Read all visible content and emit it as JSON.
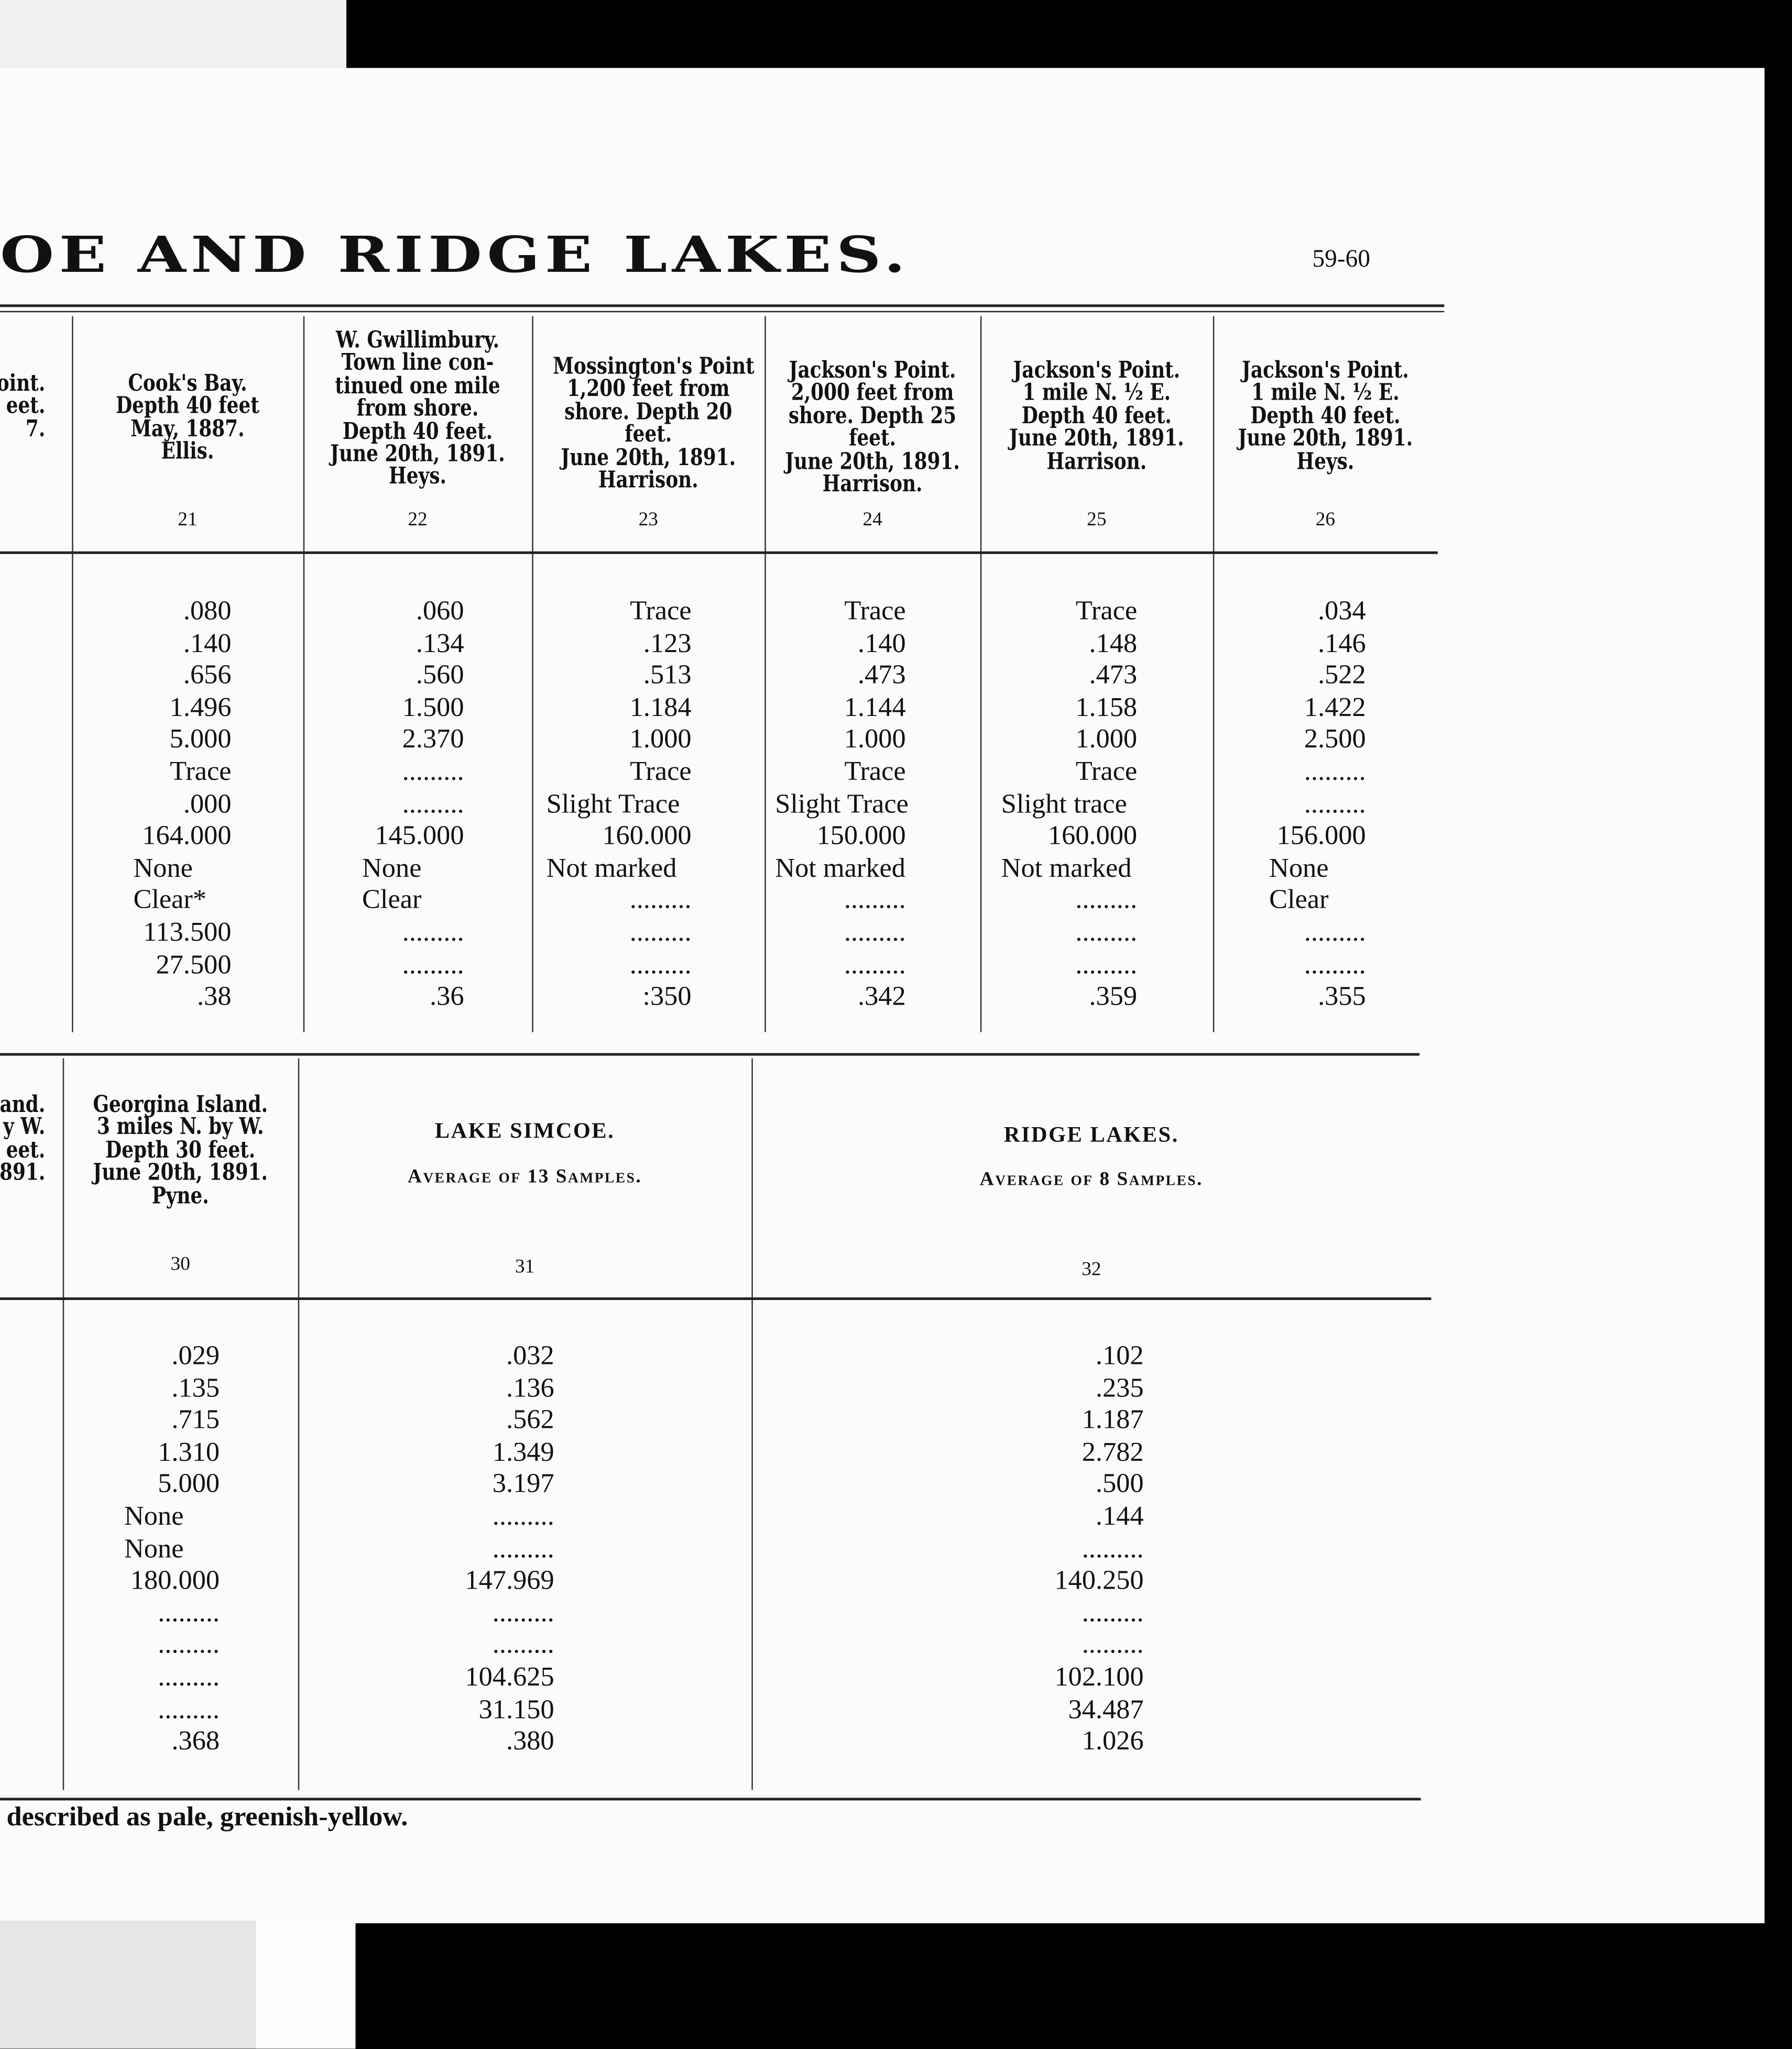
{
  "page": {
    "title": "OE AND RIDGE LAKES.",
    "page_number": "59-60",
    "footnote": "described as pale, greenish-yellow."
  },
  "top_table": {
    "partial_header": [
      "oint.",
      "eet.",
      "7."
    ],
    "columns": [
      {
        "number": "21",
        "header": [
          "Cook's Bay.",
          "Depth 40 feet",
          "May, 1887.",
          "Ellis."
        ],
        "values": [
          ".080",
          ".140",
          ".656",
          "1.496",
          "5.000",
          "Trace",
          ".000",
          "164.000",
          "None",
          "Clear*",
          "113.500",
          "27.500",
          ".38"
        ]
      },
      {
        "number": "22",
        "header": [
          "W. Gwillimbury.",
          "Town line con-",
          "tinued one mile",
          "from shore.",
          "Depth 40 feet.",
          "June 20th, 1891.",
          "Heys."
        ],
        "values": [
          ".060",
          ".134",
          ".560",
          "1.500",
          "2.370",
          ".........",
          ".........",
          "145.000",
          "None",
          "Clear",
          ".........",
          ".........",
          ".36"
        ]
      },
      {
        "number": "23",
        "header": [
          "Mossington's Point",
          "1,200 feet from",
          "shore. Depth 20",
          "feet.",
          "June 20th, 1891.",
          "Harrison."
        ],
        "values": [
          "Trace",
          ".123",
          ".513",
          "1.184",
          "1.000",
          "Trace",
          "Slight Trace",
          "160.000",
          "Not marked",
          ".........",
          ".........",
          ".........",
          ":350"
        ]
      },
      {
        "number": "24",
        "header": [
          "Jackson's Point.",
          "2,000 feet from",
          "shore. Depth 25",
          "feet.",
          "June 20th, 1891.",
          "Harrison."
        ],
        "values": [
          "Trace",
          ".140",
          ".473",
          "1.144",
          "1.000",
          "Trace",
          "Slight Trace",
          "150.000",
          "Not marked",
          ".........",
          ".........",
          ".........",
          ".342"
        ]
      },
      {
        "number": "25",
        "header": [
          "Jackson's Point.",
          "1 mile N. ½ E.",
          "Depth 40 feet.",
          "June 20th, 1891.",
          "Harrison."
        ],
        "values": [
          "Trace",
          ".148",
          ".473",
          "1.158",
          "1.000",
          "Trace",
          "Slight trace",
          "160.000",
          "Not marked",
          ".........",
          ".........",
          ".........",
          ".359"
        ]
      },
      {
        "number": "26",
        "header": [
          "Jackson's Point.",
          "1 mile N. ½ E.",
          "Depth 40 feet.",
          "June 20th, 1891.",
          "Heys."
        ],
        "values": [
          ".034",
          ".146",
          ".522",
          "1.422",
          "2.500",
          ".........",
          ".........",
          "156.000",
          "None",
          "Clear",
          ".........",
          ".........",
          ".355"
        ]
      }
    ]
  },
  "bottom_table": {
    "partial_header": [
      "and.",
      "y W.",
      "eet.",
      "1891."
    ],
    "columns": [
      {
        "number": "30",
        "header": [
          "Georgina Island.",
          "3 miles N. by W.",
          "Depth 30 feet.",
          "June 20th, 1891.",
          "Pyne."
        ],
        "values": [
          ".029",
          ".135",
          ".715",
          "1.310",
          "5.000",
          "None",
          "None",
          "180.000",
          ".........",
          ".........",
          ".........",
          ".........",
          ".368"
        ]
      },
      {
        "number": "31",
        "title": "LAKE SIMCOE.",
        "subtitle": "Average of 13 Samples.",
        "values": [
          ".032",
          ".136",
          ".562",
          "1.349",
          "3.197",
          ".........",
          ".........",
          "147.969",
          ".........",
          ".........",
          "104.625",
          "31.150",
          ".380"
        ]
      },
      {
        "number": "32",
        "title": "RIDGE LAKES.",
        "subtitle": "Average of 8 Samples.",
        "values": [
          ".102",
          ".235",
          "1.187",
          "2.782",
          ".500",
          ".144",
          ".........",
          "140.250",
          ".........",
          ".........",
          "102.100",
          "34.487",
          "1.026"
        ]
      }
    ]
  }
}
